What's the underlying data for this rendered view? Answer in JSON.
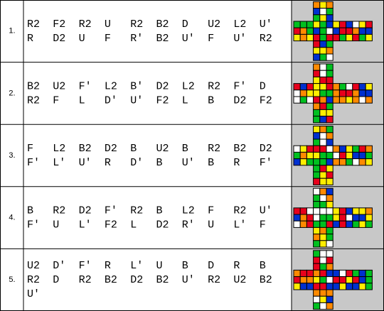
{
  "rows": [
    {
      "number": "1.",
      "lines": [
        [
          "R2",
          "F2",
          "R2",
          "U",
          "R2",
          "B2",
          "D",
          "U2",
          "L2",
          "U'"
        ],
        [
          "R",
          "D2",
          "U",
          "F",
          "R'",
          "B2",
          "U'",
          "F",
          "U'",
          "R2"
        ]
      ]
    },
    {
      "number": "2.",
      "lines": [
        [
          "B2",
          "U2",
          "F'",
          "L2",
          "B'",
          "D2",
          "L2",
          "R2",
          "F'",
          "D"
        ],
        [
          "R2",
          "F",
          "L",
          "D'",
          "U'",
          "F2",
          "L",
          "B",
          "D2",
          "F2"
        ]
      ]
    },
    {
      "number": "3.",
      "lines": [
        [
          "F",
          "L2",
          "B2",
          "D2",
          "B",
          "U2",
          "B",
          "R2",
          "B2",
          "D2"
        ],
        [
          "F'",
          "L'",
          "U'",
          "R",
          "D'",
          "B",
          "U'",
          "B",
          "R",
          "F'"
        ]
      ]
    },
    {
      "number": "4.",
      "lines": [
        [
          "B",
          "R2",
          "D2",
          "F'",
          "R2",
          "B",
          "L2",
          "F",
          "R2",
          "U'"
        ],
        [
          "F'",
          "U",
          "L'",
          "F2",
          "L",
          "D2",
          "R'",
          "U",
          "L'",
          "F"
        ]
      ]
    },
    {
      "number": "5.",
      "lines": [
        [
          "U2",
          "D'",
          "F'",
          "R",
          "L'",
          "U",
          "B",
          "D",
          "R",
          "B"
        ],
        [
          "R2",
          "D",
          "R2",
          "B2",
          "D2",
          "B2",
          "U'",
          "R2",
          "U2",
          "B2"
        ],
        [
          "U'"
        ]
      ]
    }
  ]
}
